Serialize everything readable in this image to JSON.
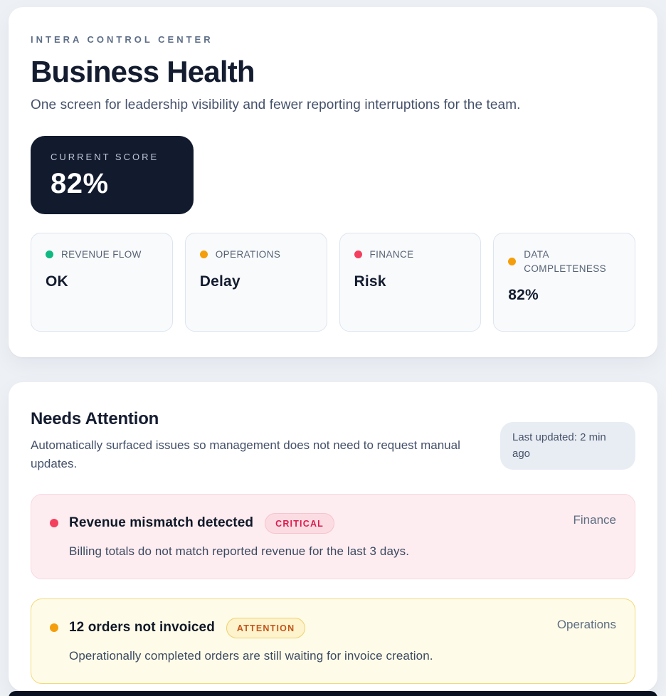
{
  "header_card": {
    "eyebrow": "INTERA CONTROL CENTER",
    "title": "Business Health",
    "subtitle": "One screen for leadership visibility and fewer reporting interruptions for the team.",
    "score_chip": {
      "label": "CURRENT SCORE",
      "value": "82%"
    },
    "metrics": [
      {
        "label": "REVENUE FLOW",
        "value": "OK",
        "dot_color": "#10b981"
      },
      {
        "label": "OPERATIONS",
        "value": "Delay",
        "dot_color": "#f59e0b"
      },
      {
        "label": "FINANCE",
        "value": "Risk",
        "dot_color": "#f43f5e"
      },
      {
        "label": "DATA COMPLETENESS",
        "value": "82%",
        "dot_color": "#f59e0b"
      }
    ]
  },
  "attention_card": {
    "title": "Needs Attention",
    "subtitle": "Automatically surfaced issues so management does not need to request manual updates.",
    "last_updated": "Last updated: 2 min ago",
    "alerts": [
      {
        "title": "Revenue mismatch detected",
        "badge": "CRITICAL",
        "department": "Finance",
        "description": "Billing totals do not match reported revenue for the last 3 days.",
        "dot_color": "#f43f5e",
        "bg_color": "#fdedf0"
      },
      {
        "title": "12 orders not invoiced",
        "badge": "ATTENTION",
        "department": "Operations",
        "description": "Operationally completed orders are still waiting for invoice creation.",
        "dot_color": "#f59e0b",
        "bg_color": "#fefce8"
      }
    ]
  },
  "theme": {
    "page_bg": "#edf1f6",
    "score_chip_bg": "#121b2e",
    "critical_accent": "#d91e4f",
    "attention_accent": "#c2561d"
  }
}
